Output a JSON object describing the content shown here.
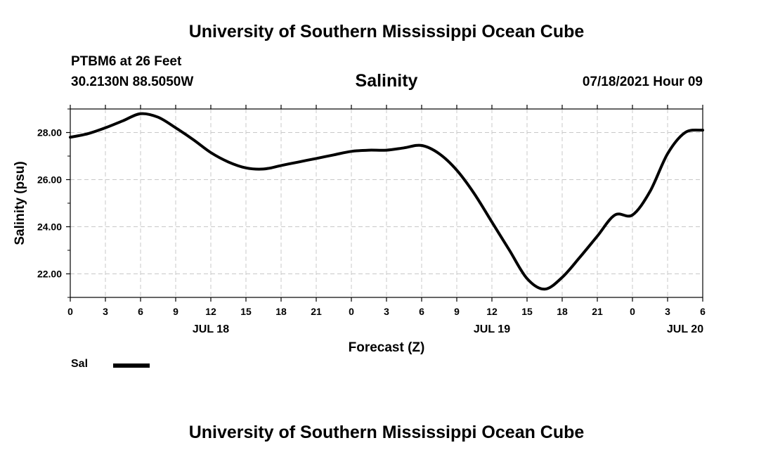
{
  "header": {
    "main_title": "University of Southern Mississippi Ocean Cube",
    "station": "PTBM6 at 26 Feet",
    "coords": "30.2130N  88.5050W",
    "chart_title": "Salinity",
    "datetime": "07/18/2021 Hour 09"
  },
  "footer": {
    "title": "University of Southern Mississippi Ocean Cube"
  },
  "legend": {
    "label": "Sal",
    "color": "#000000"
  },
  "chart_data": {
    "type": "line",
    "title": "Salinity",
    "xlabel": "Forecast (Z)",
    "ylabel": "Salinity (psu)",
    "x_unit": "forecast hour",
    "xlim": [
      0,
      54
    ],
    "ylim": [
      21.0,
      29.0
    ],
    "y_ticks": [
      22.0,
      24.0,
      26.0,
      28.0
    ],
    "y_tick_labels": [
      "22.00",
      "24.00",
      "26.00",
      "28.00"
    ],
    "x_ticks": [
      0,
      3,
      6,
      9,
      12,
      15,
      18,
      21,
      24,
      27,
      30,
      33,
      36,
      39,
      42,
      45,
      48,
      51,
      54
    ],
    "x_tick_labels": [
      "0",
      "3",
      "6",
      "9",
      "12",
      "15",
      "18",
      "21",
      "0",
      "3",
      "6",
      "9",
      "12",
      "15",
      "18",
      "21",
      "0",
      "3",
      "6"
    ],
    "date_labels": [
      {
        "label": "JUL 18",
        "x": 12
      },
      {
        "label": "JUL 19",
        "x": 36
      },
      {
        "label": "JUL 20",
        "x": 52.5
      }
    ],
    "grid": true,
    "legend_position": "bottom-left",
    "series": [
      {
        "name": "Sal",
        "color": "#000000",
        "x": [
          0,
          1.5,
          3,
          4.5,
          6,
          7.5,
          9,
          10.5,
          12,
          13.5,
          15,
          16.5,
          18,
          19.5,
          21,
          22.5,
          24,
          25.5,
          27,
          28.5,
          30,
          31.5,
          33,
          34.5,
          36,
          37.5,
          39,
          40.5,
          42,
          43.5,
          45,
          46.5,
          48,
          49.5,
          51,
          52.5,
          54
        ],
        "values": [
          27.8,
          27.95,
          28.2,
          28.5,
          28.8,
          28.65,
          28.2,
          27.7,
          27.15,
          26.75,
          26.5,
          26.45,
          26.6,
          26.75,
          26.9,
          27.05,
          27.2,
          27.25,
          27.25,
          27.35,
          27.45,
          27.1,
          26.4,
          25.4,
          24.2,
          23.0,
          21.8,
          21.35,
          21.85,
          22.7,
          23.6,
          24.5,
          24.5,
          25.5,
          27.1,
          28.0,
          28.1
        ]
      }
    ]
  }
}
